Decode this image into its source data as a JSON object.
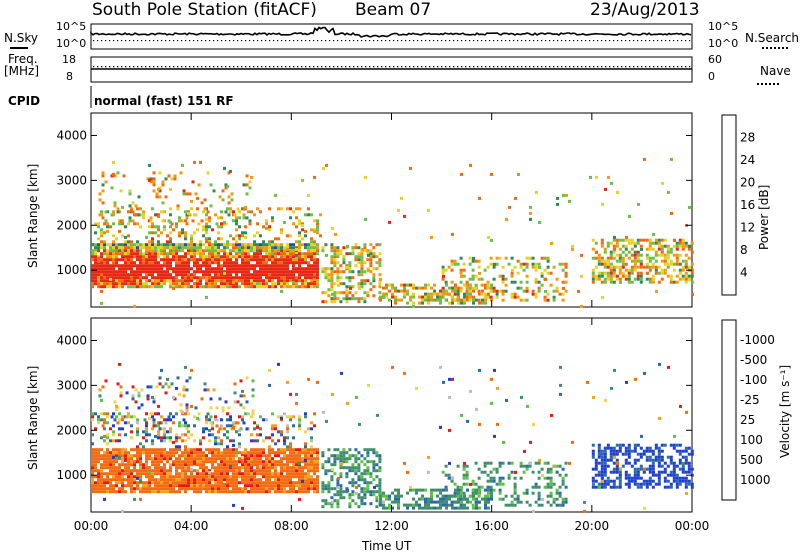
{
  "header": {
    "station": "South Pole Station (fitACF)",
    "beam": "Beam 07",
    "date": "23/Aug/2013"
  },
  "sidepanel": {
    "nsky": "N.Sky",
    "nsearch": "N.Search",
    "nsky_ticks": [
      "10^5",
      "10^0"
    ],
    "nsearch_ticks": [
      "10^5",
      "10^0"
    ],
    "freq": "Freq.",
    "freq_unit": "[MHz]",
    "freq_ticks": [
      "18",
      "8"
    ],
    "nave": "Nave",
    "nave_ticks": [
      "60",
      "0"
    ],
    "cpid": "CPID",
    "cpid_value": "normal (fast) 151 RF"
  },
  "chart_data": [
    {
      "type": "heatmap",
      "title": "",
      "ylabel": "Slant Range [km]",
      "xlabel": "",
      "x_ticks": [
        "00:00",
        "04:00",
        "08:00",
        "12:00",
        "16:00",
        "20:00",
        "00:00"
      ],
      "y_ticks": [
        1000,
        2000,
        3000,
        4000
      ],
      "xlim": [
        "00:00",
        "24:00"
      ],
      "ylim": [
        180,
        4500
      ],
      "colorbar": {
        "label": "Power [dB]",
        "ticks": [
          "4",
          "8",
          "12",
          "16",
          "20",
          "24",
          "28"
        ],
        "colors": [
          "#1010ff",
          "#2a4bb0",
          "#2d8a5a",
          "#6bbf4a",
          "#e7d224",
          "#f39a10",
          "#f26a12",
          "#e62814"
        ]
      }
    },
    {
      "type": "heatmap",
      "title": "",
      "ylabel": "Slant Range [km]",
      "xlabel": "Time UT",
      "x_ticks": [
        "00:00",
        "04:00",
        "08:00",
        "12:00",
        "16:00",
        "20:00",
        "00:00"
      ],
      "y_ticks": [
        1000,
        2000,
        3000,
        4000
      ],
      "xlim": [
        "00:00",
        "24:00"
      ],
      "ylim": [
        180,
        4500
      ],
      "colorbar": {
        "label": "Velocity [m s⁻¹]",
        "ticks": [
          "1000",
          "500",
          "100",
          "25",
          "-25",
          "-100",
          "-500",
          "-1000"
        ],
        "colors": [
          "#1f3fd0",
          "#2a6aa6",
          "#3f8f6c",
          "#5fc048",
          "#bdbdbd",
          "#f3d34a",
          "#f6a020",
          "#f36b12",
          "#e61a14"
        ]
      }
    }
  ],
  "time_axis": {
    "label": "Time UT"
  }
}
